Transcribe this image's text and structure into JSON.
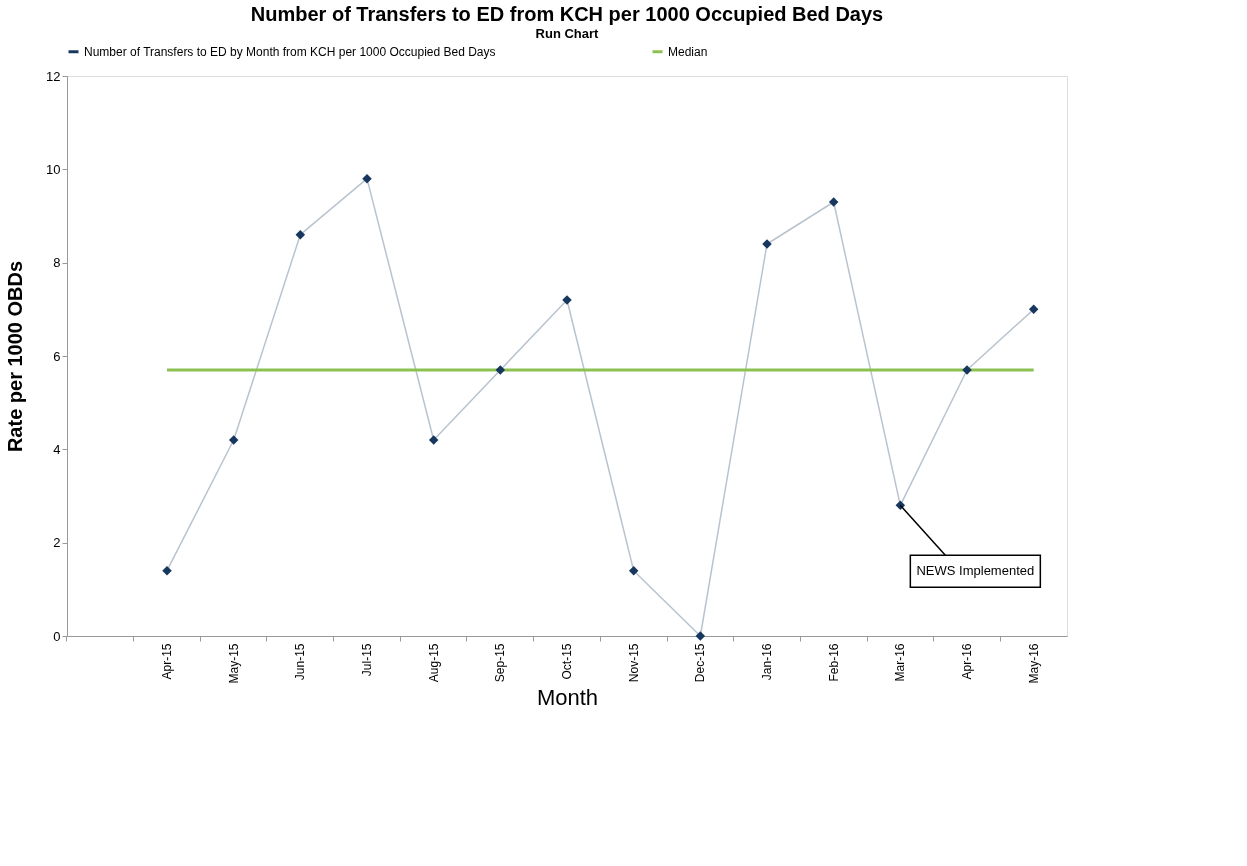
{
  "chart_data": {
    "type": "line",
    "title": "Number of Transfers to ED from KCH per 1000 Occupied Bed Days",
    "subtitle": "Run Chart",
    "xlabel": "Month",
    "ylabel": "Rate per 1000 OBDs",
    "categories": [
      null,
      "Apr-15",
      "May-15",
      "Jun-15",
      "Jul-15",
      "Aug-15",
      "Sep-15",
      "Oct-15",
      "Nov-15",
      "Dec-15",
      "Jan-16",
      "Feb-16",
      "Mar-16",
      "Apr-16",
      "May-16"
    ],
    "series": [
      {
        "name": "Number of Transfers to ED by Month from KCH per 1000 Occupied Bed Days",
        "color": "#17375e",
        "values": [
          null,
          1.4,
          4.2,
          8.6,
          9.8,
          4.2,
          5.7,
          7.2,
          1.4,
          0,
          8.4,
          9.3,
          2.8,
          5.7,
          7.0
        ]
      },
      {
        "name": "Median",
        "color": "#8cc152",
        "marker": "none",
        "values": [
          null,
          5.7,
          5.7,
          5.7,
          5.7,
          5.7,
          5.7,
          5.7,
          5.7,
          5.7,
          5.7,
          5.7,
          5.7,
          5.7,
          5.7
        ]
      }
    ],
    "ylim": [
      0,
      12
    ],
    "yticks": [
      0,
      2,
      4,
      6,
      8,
      10,
      12
    ],
    "grid": false,
    "legend": "top",
    "marker": "diamond",
    "line_style": "solid",
    "annotations": [
      {
        "text": "NEWS Implemented",
        "x": "Mar-16",
        "y": 2.8
      }
    ]
  }
}
